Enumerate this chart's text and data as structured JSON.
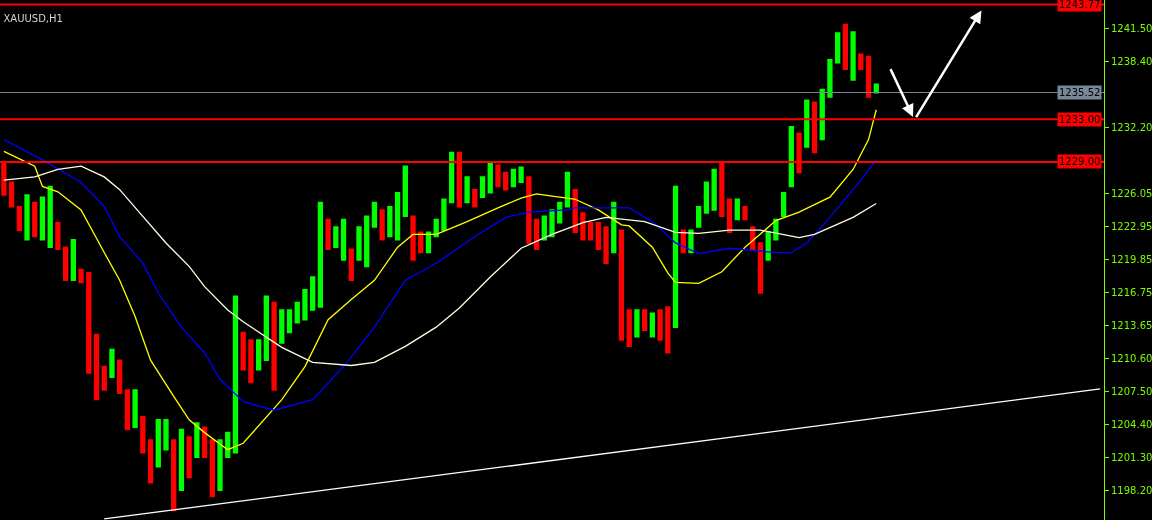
{
  "chart_data": {
    "type": "candlestick",
    "title": "XAUUSD,H1",
    "categories": [
      null,
      null,
      null,
      null,
      null,
      null,
      null,
      null,
      null,
      null,
      null,
      null,
      null,
      null,
      null,
      null,
      null,
      null,
      null,
      null,
      null,
      null,
      null,
      null,
      null,
      null,
      null,
      null,
      null,
      null,
      null,
      null,
      null,
      null,
      null,
      null,
      null,
      null,
      null,
      null,
      null,
      null,
      null,
      null,
      null,
      null,
      null,
      null,
      null,
      null,
      null,
      null,
      null,
      null,
      null,
      null,
      null,
      null,
      null,
      null,
      null,
      null,
      null,
      null,
      null,
      null,
      null,
      null,
      null,
      null,
      null,
      null,
      null,
      null,
      null,
      null,
      null,
      null,
      null,
      null,
      null,
      null,
      null,
      null,
      null,
      null,
      null,
      null,
      null,
      null,
      null,
      null,
      null,
      null,
      null,
      null,
      null,
      null,
      null,
      null,
      null,
      null,
      null,
      null,
      null,
      null,
      null,
      null,
      null,
      null,
      null,
      null,
      null,
      null,
      null,
      null,
      null,
      null,
      null,
      null,
      null,
      null,
      null,
      null,
      null,
      null,
      null,
      null,
      null,
      null,
      null,
      null,
      null,
      null,
      null,
      null,
      null,
      null,
      null,
      null,
      null,
      null,
      null
    ],
    "ohlc": [
      [
        1228.9,
        1228.9,
        1225.9,
        1225.9
      ],
      [
        1227.1,
        1227.1,
        1224.8,
        1224.8
      ],
      [
        1224.8,
        1224.8,
        1222.6,
        1222.6
      ],
      [
        1221.7,
        1225.9,
        1221.7,
        1225.9
      ],
      [
        1225.2,
        1225.2,
        1222.0,
        1222.0
      ],
      [
        1221.7,
        1225.7,
        1221.7,
        1225.7
      ],
      [
        1221.0,
        1226.7,
        1221.0,
        1226.7
      ],
      [
        1223.3,
        1223.3,
        1220.8,
        1220.8
      ],
      [
        1221.0,
        1221.0,
        1217.9,
        1217.9
      ],
      [
        1217.9,
        1221.7,
        1217.9,
        1221.7
      ],
      [
        1218.9,
        1218.9,
        1217.7,
        1217.7
      ],
      [
        1218.6,
        1218.6,
        1209.2,
        1209.2
      ],
      [
        1212.8,
        1212.8,
        1206.7,
        1206.7
      ],
      [
        1209.8,
        1209.8,
        1207.6,
        1207.6
      ],
      [
        1208.8,
        1211.4,
        1208.8,
        1211.4
      ],
      [
        1210.4,
        1210.4,
        1207.3,
        1207.3
      ],
      [
        1207.6,
        1207.6,
        1203.9,
        1203.9
      ],
      [
        1204.1,
        1207.6,
        1204.1,
        1207.6
      ],
      [
        1205.1,
        1205.1,
        1201.7,
        1201.7
      ],
      [
        1202.9,
        1202.9,
        1198.9,
        1198.9
      ],
      [
        1200.4,
        1204.8,
        1200.4,
        1204.8
      ],
      [
        1202.0,
        1204.8,
        1202.0,
        1204.8
      ],
      [
        1202.9,
        1202.9,
        1196.3,
        1196.3
      ],
      [
        1198.2,
        1203.9,
        1198.2,
        1203.9
      ],
      [
        1203.2,
        1203.2,
        1199.4,
        1199.4
      ],
      [
        1201.3,
        1204.5,
        1201.3,
        1204.5
      ],
      [
        1204.1,
        1204.1,
        1201.3,
        1201.3
      ],
      [
        1202.9,
        1202.9,
        1197.6,
        1197.6
      ],
      [
        1198.2,
        1202.9,
        1198.2,
        1202.9
      ],
      [
        1201.3,
        1203.6,
        1201.3,
        1203.6
      ],
      [
        1201.7,
        1216.4,
        1201.7,
        1216.4
      ],
      [
        1213.0,
        1213.0,
        1209.5,
        1209.5
      ],
      [
        1212.3,
        1212.3,
        1208.3,
        1208.3
      ],
      [
        1209.5,
        1212.3,
        1209.5,
        1212.3
      ],
      [
        1210.4,
        1216.4,
        1210.4,
        1216.4
      ],
      [
        1215.8,
        1215.8,
        1207.6,
        1207.6
      ],
      [
        1212.0,
        1215.1,
        1212.0,
        1215.1
      ],
      [
        1213.0,
        1215.1,
        1213.0,
        1215.1
      ],
      [
        1213.9,
        1215.8,
        1213.9,
        1215.8
      ],
      [
        1214.2,
        1217.0,
        1214.2,
        1217.0
      ],
      [
        1215.1,
        1218.2,
        1215.1,
        1218.2
      ],
      [
        1215.4,
        1225.2,
        1215.4,
        1225.2
      ],
      [
        1223.6,
        1223.6,
        1220.8,
        1220.8
      ],
      [
        1221.0,
        1222.9,
        1221.0,
        1222.9
      ],
      [
        1219.8,
        1223.6,
        1219.8,
        1223.6
      ],
      [
        1220.8,
        1220.8,
        1217.9,
        1217.9
      ],
      [
        1219.8,
        1222.9,
        1219.8,
        1222.9
      ],
      [
        1219.2,
        1223.9,
        1219.2,
        1223.9
      ],
      [
        1222.9,
        1225.2,
        1222.9,
        1225.2
      ],
      [
        1224.5,
        1224.5,
        1221.7,
        1221.7
      ],
      [
        1222.0,
        1224.8,
        1222.0,
        1224.8
      ],
      [
        1221.7,
        1226.1,
        1221.7,
        1226.1
      ],
      [
        1223.9,
        1228.6,
        1223.9,
        1228.6
      ],
      [
        1223.9,
        1223.9,
        1219.8,
        1219.8
      ],
      [
        1222.4,
        1222.4,
        1220.5,
        1220.5
      ],
      [
        1220.5,
        1222.4,
        1220.5,
        1222.4
      ],
      [
        1222.0,
        1223.6,
        1222.0,
        1223.6
      ],
      [
        1222.6,
        1225.5,
        1222.6,
        1225.5
      ],
      [
        1225.2,
        1229.9,
        1225.2,
        1229.9
      ],
      [
        1229.9,
        1229.9,
        1224.8,
        1224.8
      ],
      [
        1225.2,
        1227.6,
        1225.2,
        1227.6
      ],
      [
        1226.4,
        1226.4,
        1224.8,
        1224.8
      ],
      [
        1225.7,
        1227.6,
        1225.7,
        1227.6
      ],
      [
        1226.1,
        1228.9,
        1226.1,
        1228.9
      ],
      [
        1228.7,
        1228.7,
        1226.7,
        1226.7
      ],
      [
        1228.0,
        1228.0,
        1226.4,
        1226.4
      ],
      [
        1226.7,
        1228.3,
        1226.7,
        1228.3
      ],
      [
        1227.1,
        1228.5,
        1227.1,
        1228.5
      ],
      [
        1227.6,
        1227.6,
        1221.4,
        1221.4
      ],
      [
        1223.6,
        1223.6,
        1220.8,
        1220.8
      ],
      [
        1221.7,
        1223.9,
        1221.7,
        1223.9
      ],
      [
        1222.0,
        1224.5,
        1222.0,
        1224.5
      ],
      [
        1223.3,
        1225.2,
        1223.3,
        1225.2
      ],
      [
        1224.8,
        1228.0,
        1224.8,
        1228.0
      ],
      [
        1226.4,
        1226.4,
        1222.4,
        1222.4
      ],
      [
        1224.2,
        1224.2,
        1221.7,
        1221.7
      ],
      [
        1223.3,
        1223.3,
        1221.7,
        1221.7
      ],
      [
        1223.3,
        1223.3,
        1220.8,
        1220.8
      ],
      [
        1222.9,
        1222.9,
        1219.5,
        1219.5
      ],
      [
        1220.5,
        1225.2,
        1220.5,
        1225.2
      ],
      [
        1222.6,
        1222.6,
        1212.3,
        1212.3
      ],
      [
        1215.1,
        1215.1,
        1211.7,
        1211.7
      ],
      [
        1212.6,
        1215.1,
        1212.6,
        1215.1
      ],
      [
        1215.1,
        1215.1,
        1213.2,
        1213.2
      ],
      [
        1212.6,
        1214.8,
        1212.6,
        1214.8
      ],
      [
        1215.1,
        1215.1,
        1212.3,
        1212.3
      ],
      [
        1215.4,
        1215.4,
        1211.1,
        1211.1
      ],
      [
        1213.5,
        1226.7,
        1213.5,
        1226.7
      ],
      [
        1222.6,
        1222.6,
        1220.5,
        1220.5
      ],
      [
        1220.5,
        1222.6,
        1220.5,
        1222.6
      ],
      [
        1222.9,
        1224.8,
        1222.9,
        1224.8
      ],
      [
        1224.2,
        1227.1,
        1224.2,
        1227.1
      ],
      [
        1224.5,
        1228.3,
        1224.5,
        1228.3
      ],
      [
        1228.9,
        1228.9,
        1223.9,
        1223.9
      ],
      [
        1225.5,
        1225.5,
        1222.4,
        1222.4
      ],
      [
        1223.6,
        1225.5,
        1223.6,
        1225.5
      ],
      [
        1224.8,
        1224.8,
        1223.6,
        1223.6
      ],
      [
        1222.9,
        1222.9,
        1220.8,
        1220.8
      ],
      [
        1221.4,
        1221.4,
        1216.7,
        1216.7
      ],
      [
        1219.8,
        1222.4,
        1219.8,
        1222.4
      ],
      [
        1221.7,
        1223.6,
        1221.7,
        1223.6
      ],
      [
        1223.9,
        1226.1,
        1223.9,
        1226.1
      ],
      [
        1226.7,
        1232.3,
        1226.7,
        1232.3
      ],
      [
        1231.7,
        1231.7,
        1228.0,
        1228.0
      ],
      [
        1230.4,
        1234.8,
        1230.4,
        1234.8
      ],
      [
        1234.6,
        1234.6,
        1229.9,
        1229.9
      ],
      [
        1231.1,
        1235.8,
        1231.1,
        1235.8
      ],
      [
        1235.1,
        1238.6,
        1235.1,
        1238.6
      ],
      [
        1238.3,
        1241.1,
        1238.3,
        1241.1
      ],
      [
        1241.9,
        1241.9,
        1237.7,
        1237.7
      ],
      [
        1236.7,
        1241.2,
        1236.7,
        1241.2
      ],
      [
        1239.1,
        1239.1,
        1237.7,
        1237.7
      ],
      [
        1238.9,
        1238.9,
        1235.1,
        1235.1
      ],
      [
        1235.5,
        1236.3,
        1235.5,
        1236.3
      ],
      null,
      null,
      null,
      null,
      null,
      null,
      null,
      null,
      null,
      null,
      null,
      null,
      null,
      null,
      null,
      null,
      null,
      null,
      null,
      null,
      null,
      null,
      null,
      null,
      null,
      null,
      null,
      null,
      null
    ],
    "series": [
      {
        "type": "line",
        "color": "#ffff00",
        "values": [
          1230.0,
          null,
          null,
          null,
          1228.6,
          1226.7,
          null,
          1226.2,
          null,
          null,
          1224.5,
          null,
          null,
          1220.5,
          null,
          1217.9,
          null,
          1214.5,
          null,
          1210.4,
          null,
          null,
          1207.0,
          null,
          1204.8,
          null,
          1203.6,
          null,
          null,
          1202.0,
          null,
          1202.6,
          null,
          null,
          null,
          null,
          1206.7,
          null,
          null,
          1209.8,
          null,
          null,
          1214.2,
          null,
          null,
          1216.1,
          null,
          null,
          1217.9,
          null,
          null,
          1221.0,
          null,
          1222.2,
          null,
          null,
          1222.2,
          null,
          null,
          1223.1,
          1223.4,
          null,
          null,
          null,
          1224.7,
          null,
          null,
          1225.6,
          null,
          1226.0,
          null,
          1225.8,
          null,
          1225.6,
          1225.5,
          null,
          null,
          1224.5,
          null,
          null,
          1223.1,
          1223.0,
          null,
          null,
          1221.0,
          null,
          1218.6,
          1217.7,
          null,
          null,
          1217.6,
          null,
          null,
          1218.7,
          null,
          null,
          1221.0,
          null,
          null,
          null,
          1223.5,
          null,
          null,
          1224.3,
          null,
          null,
          null,
          1225.7,
          null,
          null,
          1228.3,
          null,
          1231.1,
          1233.9,
          null,
          null,
          null,
          null,
          null,
          null,
          null,
          null,
          null,
          null,
          null,
          null,
          null,
          null,
          null,
          null,
          null,
          null,
          null,
          null,
          null,
          null,
          null,
          null,
          null,
          null,
          null,
          null,
          null
        ]
      },
      {
        "type": "line",
        "color": "#0000ff",
        "values": [
          1231.1,
          null,
          null,
          null,
          null,
          1229.2,
          null,
          null,
          null,
          null,
          1227.1,
          null,
          null,
          1224.8,
          null,
          1222.0,
          null,
          null,
          1219.5,
          null,
          1216.7,
          null,
          null,
          1213.5,
          null,
          null,
          1211.1,
          null,
          1208.6,
          null,
          null,
          1206.5,
          null,
          null,
          null,
          1205.7,
          null,
          null,
          null,
          null,
          1206.7,
          null,
          null,
          null,
          1209.8,
          null,
          null,
          null,
          1213.5,
          null,
          null,
          null,
          1217.9,
          null,
          null,
          null,
          1219.5,
          null,
          null,
          1221.0,
          null,
          1222.0,
          null,
          null,
          null,
          1223.8,
          null,
          null,
          1224.3,
          null,
          null,
          null,
          null,
          1224.5,
          1224.7,
          null,
          null,
          null,
          null,
          null,
          null,
          1224.7,
          null,
          null,
          1223.4,
          null,
          null,
          1221.4,
          null,
          null,
          1220.4,
          null,
          null,
          null,
          1220.9,
          null,
          null,
          null,
          null,
          null,
          1220.5,
          null,
          1220.5,
          null,
          1221.4,
          null,
          null,
          1223.8,
          null,
          null,
          null,
          1227.3,
          null,
          1229.2,
          null,
          null,
          null,
          null,
          null,
          null,
          null,
          null,
          null,
          null,
          null,
          null,
          null,
          null,
          null,
          null,
          null,
          null,
          null,
          null,
          null,
          null,
          null,
          null,
          null,
          null,
          null,
          null,
          null
        ]
      },
      {
        "type": "line",
        "color": "#ffffe0",
        "values": [
          1227.3,
          null,
          null,
          null,
          1227.6,
          null,
          null,
          1228.3,
          null,
          null,
          1228.6,
          null,
          null,
          1227.6,
          null,
          1226.4,
          null,
          null,
          1223.9,
          null,
          null,
          1221.4,
          null,
          null,
          1219.2,
          null,
          1217.3,
          null,
          null,
          1215.1,
          null,
          1214.0,
          null,
          null,
          null,
          null,
          1211.6,
          null,
          null,
          null,
          1210.2,
          null,
          null,
          null,
          null,
          1209.9,
          null,
          null,
          1210.2,
          null,
          null,
          null,
          1211.7,
          null,
          null,
          null,
          1213.5,
          null,
          null,
          1215.3,
          null,
          null,
          null,
          1218.2,
          null,
          null,
          null,
          1220.9,
          null,
          null,
          null,
          1222.2,
          null,
          null,
          null,
          1223.3,
          null,
          null,
          1223.8,
          null,
          null,
          null,
          null,
          1223.4,
          null,
          null,
          null,
          1222.4,
          null,
          null,
          1222.3,
          null,
          null,
          null,
          1222.6,
          null,
          null,
          null,
          1222.6,
          null,
          null,
          null,
          null,
          1221.9,
          null,
          1222.2,
          null,
          null,
          null,
          null,
          1223.8,
          null,
          null,
          1225.1,
          null,
          null,
          null,
          null,
          null,
          null,
          null,
          null,
          null,
          null,
          null,
          null,
          null,
          null,
          null,
          null,
          null,
          null,
          null,
          null,
          null,
          null,
          null,
          null,
          null,
          null,
          null,
          null,
          null
        ]
      },
      {
        "type": "line",
        "color": "#ffffff",
        "values": [
          null,
          null,
          null,
          null,
          null,
          null,
          null,
          null,
          null,
          null,
          null,
          null,
          null,
          1195.5,
          null,
          null,
          null,
          null,
          null,
          null,
          null,
          null,
          null,
          null,
          null,
          null,
          null,
          null,
          null,
          null,
          null,
          null,
          null,
          null,
          null,
          null,
          null,
          null,
          null,
          null,
          null,
          null,
          null,
          null,
          null,
          null,
          null,
          null,
          null,
          null,
          null,
          null,
          null,
          null,
          null,
          null,
          null,
          null,
          null,
          null,
          null,
          null,
          null,
          null,
          null,
          null,
          null,
          null,
          null,
          null,
          null,
          null,
          null,
          null,
          null,
          null,
          null,
          null,
          null,
          null,
          null,
          null,
          null,
          null,
          null,
          null,
          null,
          null,
          null,
          null,
          null,
          null,
          null,
          null,
          null,
          null,
          null,
          null,
          null,
          null,
          null,
          null,
          null,
          null,
          null,
          null,
          null,
          null,
          null,
          null,
          null,
          null,
          null,
          null,
          null,
          null,
          null,
          null,
          null,
          null,
          null,
          null,
          null,
          null,
          null,
          null,
          null,
          null,
          null,
          null,
          null,
          null,
          null,
          null,
          null,
          null,
          null,
          null,
          null,
          null,
          null,
          null,
          1207.7
        ]
      }
    ],
    "ref_lines": [
      {
        "axis": "y",
        "value": 1243.77,
        "label": "1243.77",
        "color": "#ff0000"
      },
      {
        "axis": "y",
        "value": 1235.52,
        "label": "1235.52",
        "color": "#778899"
      },
      {
        "axis": "y",
        "value": 1233.0,
        "label": "1233.00",
        "color": "#ff0000"
      },
      {
        "axis": "y",
        "value": 1229.0,
        "label": "1229.00",
        "color": "#ff0000"
      }
    ],
    "ylim": [
      1195.4,
      1244.2
    ],
    "yticks": [
      {
        "value": 1241.5,
        "label": "1241.50"
      },
      {
        "value": 1238.4,
        "label": "1238.40"
      },
      {
        "value": 1232.2,
        "label": "1232.20"
      },
      {
        "value": 1226.05,
        "label": "1226.05"
      },
      {
        "value": 1222.95,
        "label": "1222.95"
      },
      {
        "value": 1219.85,
        "label": "1219.85"
      },
      {
        "value": 1216.75,
        "label": "1216.75"
      },
      {
        "value": 1213.65,
        "label": "1213.65"
      },
      {
        "value": 1210.6,
        "label": "1210.60"
      },
      {
        "value": 1207.5,
        "label": "1207.50"
      },
      {
        "value": 1204.4,
        "label": "1204.40"
      },
      {
        "value": 1201.3,
        "label": "1201.30"
      },
      {
        "value": 1198.2,
        "label": "1198.20"
      }
    ],
    "tick_labels": "y"
  }
}
